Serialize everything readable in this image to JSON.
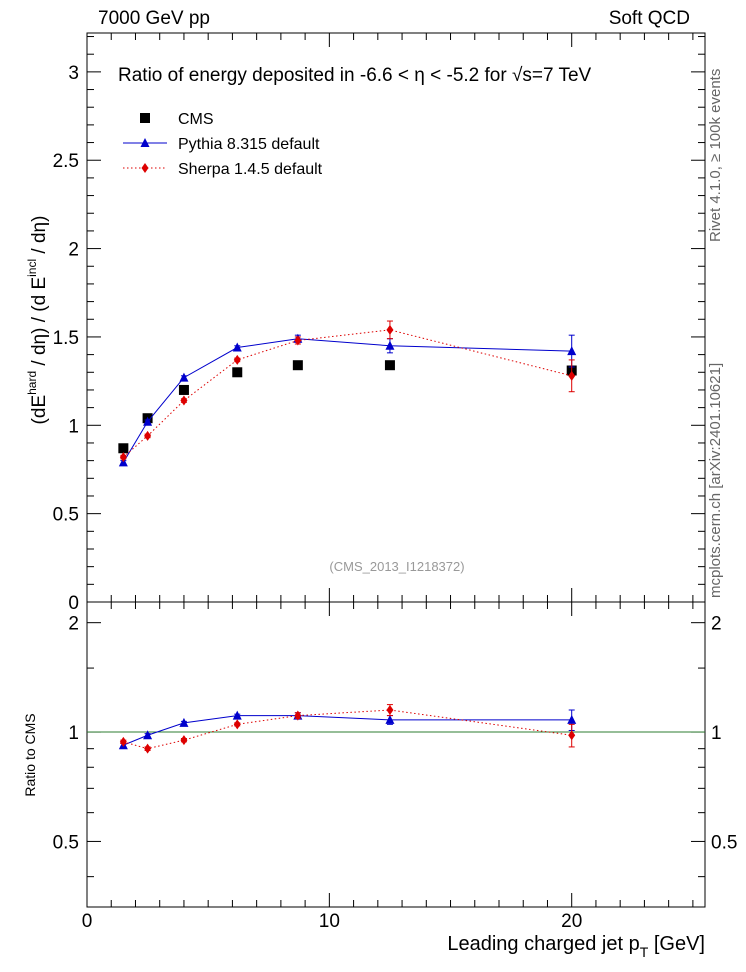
{
  "header": {
    "left": "7000 GeV pp",
    "right": "Soft QCD"
  },
  "side_labels": {
    "rivet": "Rivet 4.1.0, ≥ 100k events",
    "mcplots": "mcplots.cern.ch [arXiv:2401.10621]"
  },
  "chart_data": [
    {
      "type": "scatter",
      "title": "Ratio of energy deposited in -6.6 <   η < -5.2 for  √s=7 TeV",
      "watermark": "(CMS_2013_I1218372)",
      "xlabel": "Leading charged jet p",
      "xlabel_sub": "T",
      "xlabel_unit": " [GeV]",
      "ylabel": "(dE^hard / dη) / (d E^incl / dη)",
      "xlim": [
        0,
        25.5
      ],
      "ylim": [
        0,
        3.22
      ],
      "xticks": [
        0,
        10,
        20
      ],
      "xtick_labels": [
        "0",
        "10",
        "20"
      ],
      "yticks": [
        0,
        0.5,
        1,
        1.5,
        2,
        2.5,
        3
      ],
      "ytick_labels": [
        "0",
        "0.5",
        "1",
        "1.5",
        "2",
        "2.5",
        "3"
      ],
      "legend": [
        "CMS",
        "Pythia 8.315 default",
        "Sherpa 1.4.5 default"
      ],
      "legend_position": "top-left",
      "series": [
        {
          "name": "CMS",
          "style": "square",
          "color": "#000000",
          "x": [
            1.5,
            2.5,
            4.0,
            6.2,
            8.7,
            12.5,
            20.0
          ],
          "y": [
            0.87,
            1.04,
            1.2,
            1.3,
            1.34,
            1.34,
            1.31
          ],
          "yerr": [
            0.02,
            0.02,
            0.02,
            0.02,
            0.02,
            0.02,
            0.02
          ]
        },
        {
          "name": "Pythia 8.315 default",
          "style": "triangle-line",
          "color": "#0000cc",
          "x": [
            1.5,
            2.5,
            4.0,
            6.2,
            8.7,
            12.5,
            20.0
          ],
          "y": [
            0.79,
            1.02,
            1.27,
            1.44,
            1.49,
            1.45,
            1.42
          ],
          "yerr": [
            0.01,
            0.01,
            0.01,
            0.01,
            0.02,
            0.04,
            0.09
          ]
        },
        {
          "name": "Sherpa 1.4.5 default",
          "style": "diamond-dotted",
          "color": "#dd0000",
          "x": [
            1.5,
            2.5,
            4.0,
            6.2,
            8.7,
            12.5,
            20.0
          ],
          "y": [
            0.82,
            0.94,
            1.14,
            1.37,
            1.48,
            1.54,
            1.28
          ],
          "yerr": [
            0.01,
            0.01,
            0.01,
            0.01,
            0.02,
            0.05,
            0.09
          ]
        }
      ]
    },
    {
      "type": "scatter",
      "ylabel": "Ratio to CMS",
      "xlim": [
        0,
        25.5
      ],
      "ylim": [
        0.33,
        2.28
      ],
      "yscale": "log",
      "yticks": [
        0.5,
        1,
        2
      ],
      "ytick_labels": [
        "0.5",
        "1",
        "2"
      ],
      "reference_line": 1,
      "series": [
        {
          "name": "Pythia 8.315 default",
          "style": "triangle-line",
          "color": "#0000cc",
          "x": [
            1.5,
            2.5,
            4.0,
            6.2,
            8.7,
            12.5,
            20.0
          ],
          "y": [
            0.92,
            0.98,
            1.06,
            1.11,
            1.11,
            1.08,
            1.08
          ],
          "yerr": [
            0.01,
            0.01,
            0.01,
            0.01,
            0.02,
            0.03,
            0.07
          ]
        },
        {
          "name": "Sherpa 1.4.5 default",
          "style": "diamond-dotted",
          "color": "#dd0000",
          "x": [
            1.5,
            2.5,
            4.0,
            6.2,
            8.7,
            12.5,
            20.0
          ],
          "y": [
            0.94,
            0.9,
            0.95,
            1.05,
            1.11,
            1.15,
            0.98
          ],
          "yerr": [
            0.01,
            0.01,
            0.01,
            0.01,
            0.02,
            0.04,
            0.07
          ]
        }
      ]
    }
  ]
}
